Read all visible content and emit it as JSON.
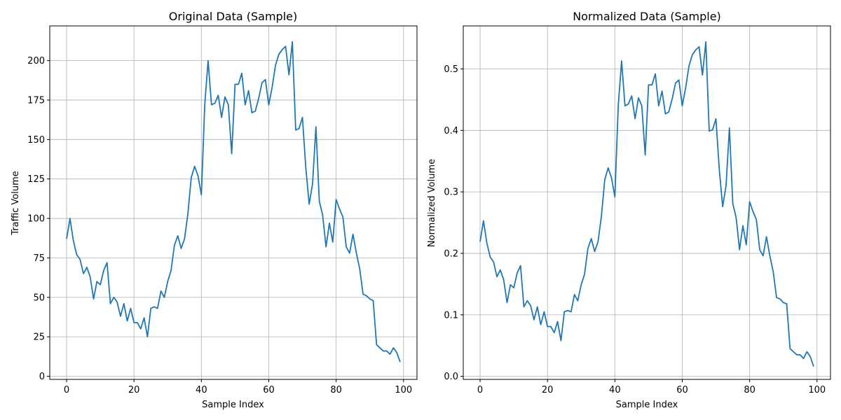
{
  "chart_data": [
    {
      "type": "line",
      "title": "Original Data (Sample)",
      "xlabel": "Sample Index",
      "ylabel": "Traffic Volume",
      "xlim": [
        -5,
        104
      ],
      "ylim": [
        -2,
        222
      ],
      "xticks": [
        0,
        20,
        40,
        60,
        80,
        100
      ],
      "yticks": [
        0,
        25,
        50,
        75,
        100,
        125,
        150,
        175,
        200
      ],
      "grid": true,
      "color": "#1f77b4",
      "y": [
        87,
        100,
        86,
        77,
        74,
        65,
        69,
        63,
        49,
        60,
        58,
        67,
        72,
        46,
        50,
        47,
        38,
        46,
        35,
        43,
        34,
        34,
        30,
        37,
        25,
        43,
        44,
        43,
        54,
        50,
        60,
        67,
        83,
        89,
        81,
        87,
        103,
        126,
        133,
        127,
        115,
        172,
        200,
        172,
        173,
        178,
        164,
        177,
        172,
        141,
        185,
        185,
        192,
        172,
        181,
        167,
        168,
        176,
        186,
        188,
        172,
        183,
        197,
        204,
        207,
        209,
        191,
        212,
        156,
        157,
        164,
        132,
        109,
        122,
        158,
        111,
        102,
        82,
        97,
        85,
        112,
        106,
        101,
        82,
        78,
        90,
        78,
        68,
        52,
        51,
        49,
        48,
        20,
        18,
        16,
        16,
        14,
        18,
        15,
        9
      ]
    },
    {
      "type": "line",
      "title": "Normalized Data (Sample)",
      "xlabel": "Sample Index",
      "ylabel": "Normalized Volume",
      "xlim": [
        -5,
        104
      ],
      "ylim": [
        -0.005,
        0.57
      ],
      "xticks": [
        0,
        20,
        40,
        60,
        80,
        100
      ],
      "yticks": [
        0.0,
        0.1,
        0.2,
        0.3,
        0.4,
        0.5
      ],
      "grid": true,
      "color": "#1f77b4",
      "y": [
        0.219,
        0.253,
        0.217,
        0.194,
        0.186,
        0.162,
        0.173,
        0.157,
        0.12,
        0.149,
        0.144,
        0.168,
        0.18,
        0.113,
        0.123,
        0.115,
        0.092,
        0.113,
        0.084,
        0.105,
        0.081,
        0.081,
        0.071,
        0.089,
        0.058,
        0.105,
        0.107,
        0.105,
        0.133,
        0.123,
        0.149,
        0.166,
        0.208,
        0.224,
        0.203,
        0.219,
        0.26,
        0.32,
        0.339,
        0.323,
        0.292,
        0.44,
        0.513,
        0.44,
        0.443,
        0.456,
        0.419,
        0.453,
        0.44,
        0.36,
        0.474,
        0.474,
        0.492,
        0.44,
        0.464,
        0.427,
        0.43,
        0.451,
        0.477,
        0.482,
        0.44,
        0.469,
        0.505,
        0.523,
        0.531,
        0.536,
        0.49,
        0.544,
        0.399,
        0.401,
        0.419,
        0.336,
        0.276,
        0.31,
        0.404,
        0.281,
        0.258,
        0.206,
        0.245,
        0.214,
        0.284,
        0.268,
        0.255,
        0.206,
        0.196,
        0.227,
        0.196,
        0.17,
        0.128,
        0.126,
        0.12,
        0.118,
        0.045,
        0.04,
        0.035,
        0.035,
        0.029,
        0.04,
        0.032,
        0.016
      ]
    }
  ]
}
